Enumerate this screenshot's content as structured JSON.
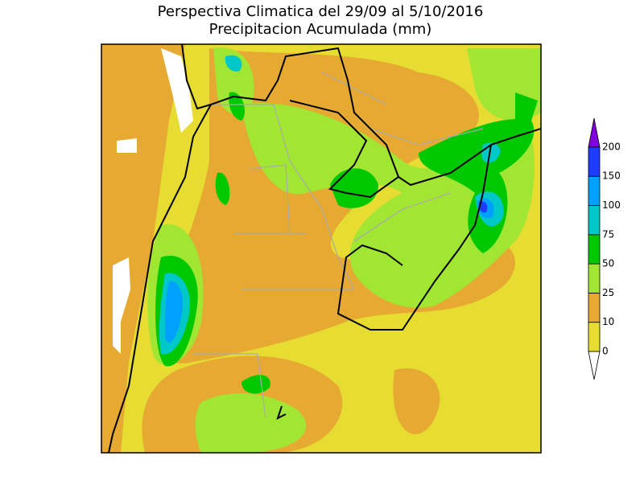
{
  "title": {
    "line1": "Perspectiva Climatica del 29/09 al 5/10/2016",
    "line2": "Precipitacion Acumulada (mm)"
  },
  "legend": {
    "ticks": [
      0,
      10,
      25,
      50,
      75,
      100,
      150,
      200
    ],
    "colors": [
      "#e6dc32",
      "#e6aa32",
      "#a0e632",
      "#00c800",
      "#00c8c8",
      "#00a0ff",
      "#1e3cff",
      "#8200dc"
    ]
  }
}
